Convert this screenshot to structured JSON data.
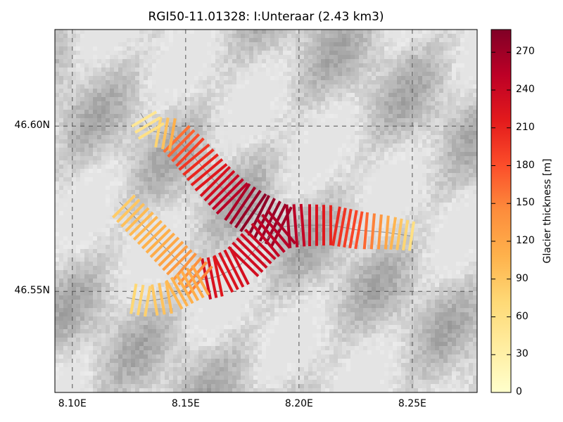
{
  "title": "RGI50-11.01328: I:Unteraar (2.43 km3)",
  "x_ticks": [
    {
      "value": 8.1,
      "label": "8.10E"
    },
    {
      "value": 8.15,
      "label": "8.15E"
    },
    {
      "value": 8.2,
      "label": "8.20E"
    },
    {
      "value": 8.25,
      "label": "8.25E"
    }
  ],
  "y_ticks": [
    {
      "value": 46.6,
      "label": "46.60N"
    },
    {
      "value": 46.55,
      "label": "46.55N"
    }
  ],
  "extent": {
    "lon": [
      8.0923,
      8.2786
    ],
    "lat": [
      46.5194,
      46.6292
    ]
  },
  "colorbar": {
    "label": "Glacier thickness [m]",
    "colormap": "YlOrRd",
    "range": [
      0,
      288
    ],
    "ticks": [
      "0",
      "30",
      "60",
      "90",
      "120",
      "150",
      "180",
      "210",
      "240",
      "270"
    ],
    "colors": [
      "#ffffcc",
      "#ffeda0",
      "#fed976",
      "#feb24c",
      "#fd8d3c",
      "#fc4e2a",
      "#e31a1c",
      "#bd0026",
      "#800026"
    ]
  },
  "flowlines": [
    {
      "name": "main",
      "points": [
        [
          8.2497,
          46.5667,
          60
        ],
        [
          8.2388,
          46.5678,
          120
        ],
        [
          8.2264,
          46.5685,
          180
        ],
        [
          8.214,
          46.57,
          210
        ],
        [
          8.2016,
          46.57,
          245
        ],
        [
          8.1922,
          46.5695,
          270
        ],
        [
          8.1798,
          46.5738,
          280
        ],
        [
          8.1705,
          46.5781,
          255
        ],
        [
          8.1612,
          46.5845,
          220
        ],
        [
          8.1519,
          46.5921,
          190
        ],
        [
          8.1441,
          46.5974,
          150
        ]
      ]
    },
    {
      "name": "upper-tributary",
      "points": [
        [
          8.1441,
          46.5974,
          110
        ],
        [
          8.1348,
          46.5985,
          60
        ],
        [
          8.1301,
          46.6039,
          40
        ]
      ]
    },
    {
      "name": "lower-branch",
      "points": [
        [
          8.1922,
          46.5695,
          260
        ],
        [
          8.1829,
          46.5642,
          240
        ],
        [
          8.1736,
          46.5577,
          230
        ],
        [
          8.1643,
          46.5545,
          220
        ],
        [
          8.1565,
          46.5534,
          240
        ]
      ]
    },
    {
      "name": "left-tributary",
      "points": [
        [
          8.1565,
          46.5534,
          150
        ],
        [
          8.1472,
          46.5588,
          130
        ],
        [
          8.1379,
          46.5652,
          110
        ],
        [
          8.1286,
          46.5717,
          100
        ],
        [
          8.1208,
          46.577,
          80
        ]
      ]
    },
    {
      "name": "bottom-tributary",
      "points": [
        [
          8.1565,
          46.5534,
          120
        ],
        [
          8.1426,
          46.5481,
          100
        ],
        [
          8.1332,
          46.547,
          80
        ],
        [
          8.1239,
          46.5481,
          70
        ]
      ]
    }
  ]
}
